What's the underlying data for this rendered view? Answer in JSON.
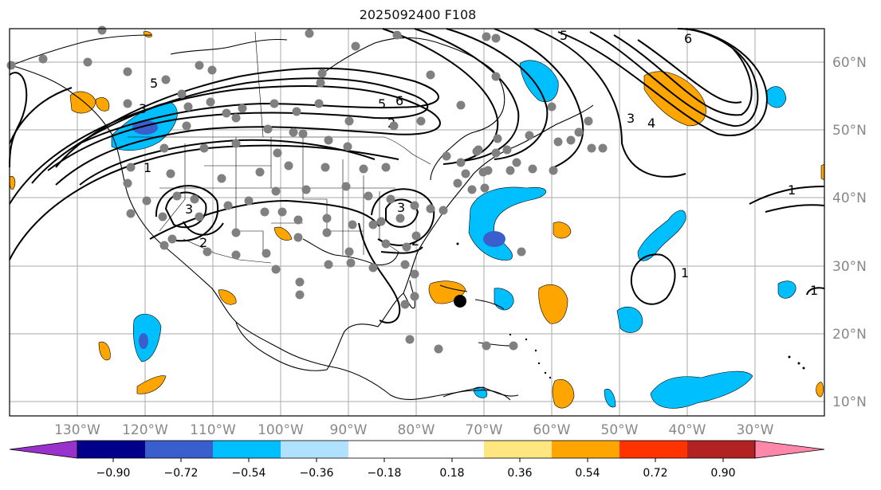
{
  "title": "2025092400 F108",
  "longitude_labels": [
    "130°W",
    "120°W",
    "110°W",
    "100°W",
    "90°W",
    "80°W",
    "70°W",
    "60°W",
    "50°W",
    "40°W",
    "30°W"
  ],
  "latitude_labels": [
    "60°N",
    "50°N",
    "40°N",
    "30°N",
    "20°N",
    "10°N"
  ],
  "contour_labels": [
    "5",
    "3",
    "1",
    "3",
    "2",
    "3",
    "2",
    "2",
    "5",
    "6",
    "6",
    "5",
    "3",
    "4",
    "1",
    "1",
    "1"
  ],
  "colorbar": {
    "tick_labels": [
      "−0.90",
      "−0.72",
      "−0.54",
      "−0.36",
      "−0.18",
      "0.18",
      "0.36",
      "0.54",
      "0.72",
      "0.90"
    ],
    "colors": [
      "#9932cc",
      "#00008b",
      "#3a5fcd",
      "#00bfff",
      "#b0e2ff",
      "#ffffff",
      "#ffe680",
      "#ffa500",
      "#ff3300",
      "#b22222",
      "#ff88aa"
    ]
  },
  "colors": {
    "positive_anomaly": "#ffa500",
    "negative_light": "#00bfff",
    "negative_mid": "#3a5fcd",
    "station_dot": "#808080",
    "grid": "#999999",
    "contour": "#000000"
  },
  "marker": "storm-center"
}
